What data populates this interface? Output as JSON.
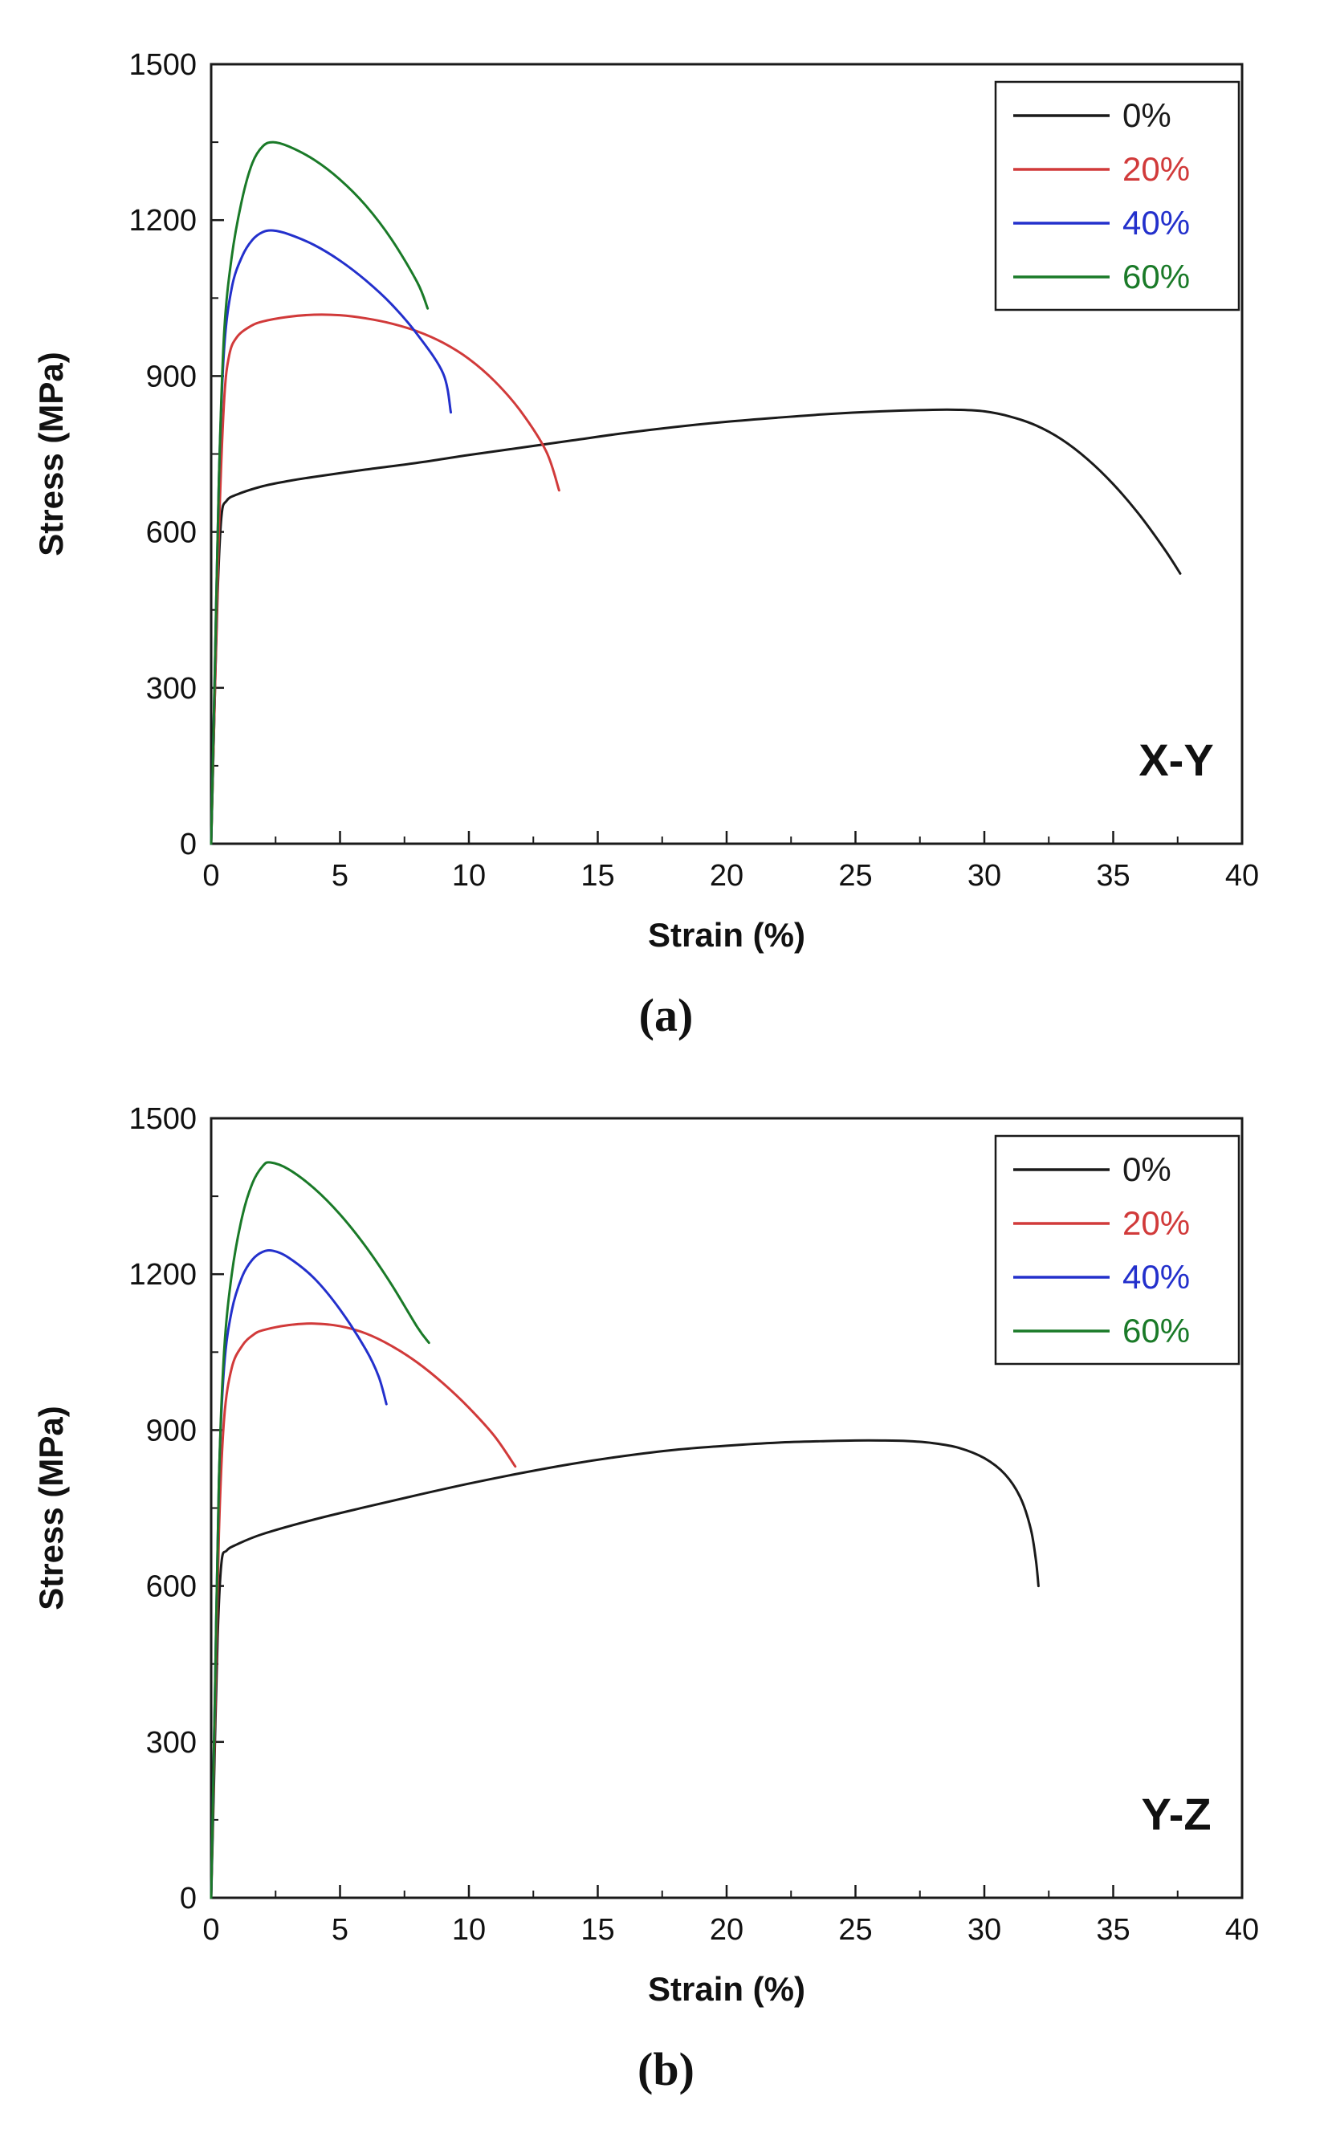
{
  "page": {
    "caption_a": "(a)",
    "caption_b": "(b)"
  },
  "style": {
    "axis_color": "#1a1a1a",
    "frame_stroke": 3,
    "curve_stroke": 3
  },
  "chart_data": [
    {
      "type": "line",
      "panel_label": "X-Y",
      "caption": "(a)",
      "xlabel": "Strain (%)",
      "ylabel": "Stress (MPa)",
      "xlim": [
        0,
        40
      ],
      "ylim": [
        0,
        1500
      ],
      "x_ticks": [
        0,
        5,
        10,
        15,
        20,
        25,
        30,
        35,
        40
      ],
      "y_ticks": [
        0,
        300,
        600,
        900,
        1200,
        1500
      ],
      "grid": false,
      "legend_position": "top-right",
      "legend_entries": [
        "0%",
        "20%",
        "40%",
        "60%"
      ],
      "series": [
        {
          "name": "0%",
          "color": "#1a1a1a",
          "points": [
            [
              0,
              0
            ],
            [
              0.1,
              200
            ],
            [
              0.25,
              480
            ],
            [
              0.4,
              630
            ],
            [
              0.6,
              660
            ],
            [
              1,
              672
            ],
            [
              2,
              688
            ],
            [
              3,
              698
            ],
            [
              4,
              706
            ],
            [
              6,
              720
            ],
            [
              8,
              733
            ],
            [
              10,
              748
            ],
            [
              12,
              762
            ],
            [
              14,
              776
            ],
            [
              16,
              790
            ],
            [
              18,
              802
            ],
            [
              20,
              812
            ],
            [
              22,
              820
            ],
            [
              24,
              827
            ],
            [
              26,
              832
            ],
            [
              28,
              835
            ],
            [
              29,
              835
            ],
            [
              30,
              832
            ],
            [
              31,
              822
            ],
            [
              32,
              805
            ],
            [
              33,
              778
            ],
            [
              34,
              740
            ],
            [
              35,
              692
            ],
            [
              36,
              634
            ],
            [
              37,
              566
            ],
            [
              37.6,
              520
            ]
          ]
        },
        {
          "name": "20%",
          "color": "#d13a3a",
          "points": [
            [
              0,
              0
            ],
            [
              0.15,
              300
            ],
            [
              0.3,
              600
            ],
            [
              0.5,
              850
            ],
            [
              0.7,
              940
            ],
            [
              1,
              975
            ],
            [
              1.5,
              995
            ],
            [
              2,
              1005
            ],
            [
              3,
              1014
            ],
            [
              4,
              1018
            ],
            [
              5,
              1017
            ],
            [
              6,
              1011
            ],
            [
              7,
              1001
            ],
            [
              8,
              986
            ],
            [
              9,
              964
            ],
            [
              10,
              933
            ],
            [
              11,
              890
            ],
            [
              12,
              833
            ],
            [
              13,
              755
            ],
            [
              13.5,
              680
            ]
          ]
        },
        {
          "name": "40%",
          "color": "#2330cc",
          "points": [
            [
              0,
              0
            ],
            [
              0.15,
              350
            ],
            [
              0.3,
              700
            ],
            [
              0.5,
              950
            ],
            [
              0.8,
              1070
            ],
            [
              1.2,
              1130
            ],
            [
              1.6,
              1162
            ],
            [
              2,
              1177
            ],
            [
              2.4,
              1180
            ],
            [
              3,
              1173
            ],
            [
              4,
              1152
            ],
            [
              5,
              1122
            ],
            [
              6,
              1084
            ],
            [
              7,
              1038
            ],
            [
              8,
              980
            ],
            [
              9,
              905
            ],
            [
              9.3,
              830
            ]
          ]
        },
        {
          "name": "60%",
          "color": "#1a7a28",
          "points": [
            [
              0,
              0
            ],
            [
              0.15,
              350
            ],
            [
              0.3,
              700
            ],
            [
              0.5,
              980
            ],
            [
              0.8,
              1130
            ],
            [
              1.2,
              1240
            ],
            [
              1.6,
              1310
            ],
            [
              2,
              1342
            ],
            [
              2.4,
              1350
            ],
            [
              3,
              1342
            ],
            [
              4,
              1316
            ],
            [
              5,
              1278
            ],
            [
              6,
              1228
            ],
            [
              7,
              1163
            ],
            [
              8,
              1080
            ],
            [
              8.4,
              1030
            ]
          ]
        }
      ]
    },
    {
      "type": "line",
      "panel_label": "Y-Z",
      "caption": "(b)",
      "xlabel": "Strain (%)",
      "ylabel": "Stress (MPa)",
      "xlim": [
        0,
        40
      ],
      "ylim": [
        0,
        1500
      ],
      "x_ticks": [
        0,
        5,
        10,
        15,
        20,
        25,
        30,
        35,
        40
      ],
      "y_ticks": [
        0,
        300,
        600,
        900,
        1200,
        1500
      ],
      "grid": false,
      "legend_position": "top-right",
      "legend_entries": [
        "0%",
        "20%",
        "40%",
        "60%"
      ],
      "series": [
        {
          "name": "0%",
          "color": "#1a1a1a",
          "points": [
            [
              0,
              0
            ],
            [
              0.1,
              200
            ],
            [
              0.25,
              500
            ],
            [
              0.4,
              645
            ],
            [
              0.6,
              668
            ],
            [
              1,
              680
            ],
            [
              2,
              700
            ],
            [
              4,
              728
            ],
            [
              6,
              752
            ],
            [
              8,
              775
            ],
            [
              10,
              797
            ],
            [
              12,
              817
            ],
            [
              14,
              835
            ],
            [
              16,
              850
            ],
            [
              18,
              862
            ],
            [
              20,
              870
            ],
            [
              22,
              876
            ],
            [
              24,
              879
            ],
            [
              25,
              880
            ],
            [
              26,
              880
            ],
            [
              27,
              879
            ],
            [
              28,
              875
            ],
            [
              29,
              866
            ],
            [
              30,
              846
            ],
            [
              30.8,
              815
            ],
            [
              31.4,
              770
            ],
            [
              31.8,
              710
            ],
            [
              32,
              650
            ],
            [
              32.1,
              600
            ]
          ]
        },
        {
          "name": "20%",
          "color": "#d13a3a",
          "points": [
            [
              0,
              0
            ],
            [
              0.15,
              350
            ],
            [
              0.3,
              700
            ],
            [
              0.5,
              920
            ],
            [
              0.8,
              1020
            ],
            [
              1.2,
              1062
            ],
            [
              1.6,
              1082
            ],
            [
              2,
              1092
            ],
            [
              3,
              1102
            ],
            [
              4,
              1105
            ],
            [
              5,
              1100
            ],
            [
              6,
              1086
            ],
            [
              7,
              1062
            ],
            [
              8,
              1030
            ],
            [
              9,
              990
            ],
            [
              10,
              943
            ],
            [
              11,
              888
            ],
            [
              11.8,
              830
            ]
          ]
        },
        {
          "name": "40%",
          "color": "#2330cc",
          "points": [
            [
              0,
              0
            ],
            [
              0.15,
              400
            ],
            [
              0.3,
              800
            ],
            [
              0.5,
              1020
            ],
            [
              0.8,
              1130
            ],
            [
              1.2,
              1195
            ],
            [
              1.6,
              1228
            ],
            [
              2,
              1243
            ],
            [
              2.4,
              1245
            ],
            [
              3,
              1232
            ],
            [
              4,
              1192
            ],
            [
              5,
              1132
            ],
            [
              6,
              1055
            ],
            [
              6.5,
              1003
            ],
            [
              6.8,
              950
            ]
          ]
        },
        {
          "name": "60%",
          "color": "#1a7a28",
          "points": [
            [
              0,
              0
            ],
            [
              0.15,
              400
            ],
            [
              0.3,
              800
            ],
            [
              0.5,
              1050
            ],
            [
              0.8,
              1200
            ],
            [
              1.2,
              1310
            ],
            [
              1.6,
              1375
            ],
            [
              2,
              1408
            ],
            [
              2.3,
              1415
            ],
            [
              3,
              1402
            ],
            [
              4,
              1365
            ],
            [
              5,
              1315
            ],
            [
              6,
              1253
            ],
            [
              7,
              1180
            ],
            [
              8,
              1098
            ],
            [
              8.45,
              1068
            ]
          ]
        }
      ]
    }
  ]
}
